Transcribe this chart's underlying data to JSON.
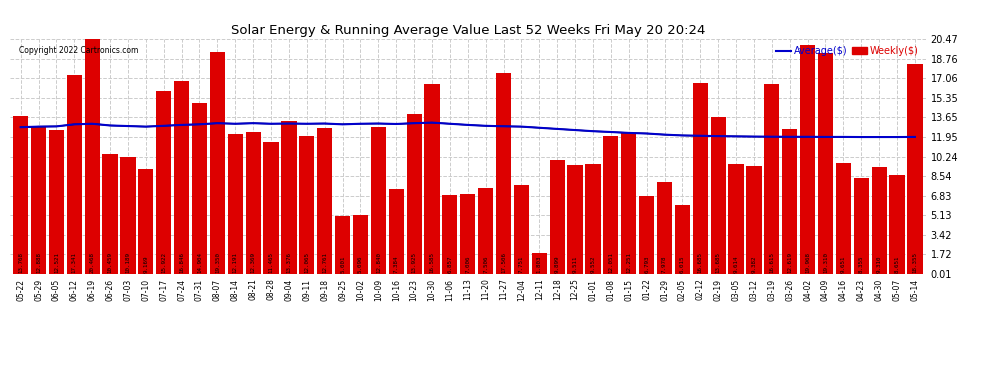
{
  "title": "Solar Energy & Running Average Value Last 52 Weeks Fri May 20 20:24",
  "copyright": "Copyright 2022 Cartronics.com",
  "legend_avg": "Average($)",
  "legend_weekly": "Weekly($)",
  "bar_color": "#dd0000",
  "avg_line_color": "#0000cc",
  "black_line_color": "#000000",
  "yticks": [
    0.01,
    1.72,
    3.42,
    5.13,
    6.83,
    8.54,
    10.24,
    11.95,
    13.65,
    15.35,
    17.06,
    18.76,
    20.47
  ],
  "xlabels": [
    "05-22",
    "05-29",
    "06-05",
    "06-12",
    "06-19",
    "06-26",
    "07-03",
    "07-10",
    "07-17",
    "07-24",
    "07-31",
    "08-07",
    "08-14",
    "08-21",
    "08-28",
    "09-04",
    "09-11",
    "09-18",
    "09-25",
    "10-02",
    "10-09",
    "10-16",
    "10-23",
    "10-30",
    "11-06",
    "11-13",
    "11-20",
    "11-27",
    "12-04",
    "12-11",
    "12-18",
    "12-25",
    "01-01",
    "01-08",
    "01-15",
    "01-22",
    "01-29",
    "02-05",
    "02-12",
    "02-19",
    "03-05",
    "03-12",
    "03-19",
    "03-26",
    "04-02",
    "04-09",
    "04-16",
    "04-23",
    "04-30",
    "05-07",
    "05-14"
  ],
  "bar_values": [
    13.768,
    12.888,
    12.521,
    17.341,
    20.468,
    10.459,
    10.189,
    9.169,
    15.922,
    16.846,
    14.904,
    19.35,
    12.191,
    12.369,
    11.465,
    13.376,
    12.065,
    12.761,
    5.001,
    5.096,
    12.84,
    7.384,
    13.925,
    16.585,
    6.857,
    7.006,
    7.506,
    17.506,
    7.751,
    1.803,
    9.899,
    9.511,
    9.552,
    12.051,
    12.251,
    6.793,
    7.978,
    6.015,
    16.685,
    13.685,
    9.614,
    9.382,
    16.615,
    12.619,
    19.968,
    19.31,
    9.651,
    8.355,
    9.31,
    8.651,
    18.355
  ],
  "bar_labels": [
    "13.768",
    "12.888",
    "12.521",
    "17.341",
    "20.468",
    "10.459",
    "10.189",
    "9.169",
    "15.922",
    "16.846",
    "14.904",
    "19.350",
    "12.191",
    "12.369",
    "11.465",
    "13.376",
    "12.065",
    "12.761",
    "5.001",
    "5.096",
    "12.840",
    "7.384",
    "13.925",
    "16.585",
    "6.857",
    "7.006",
    "7.506",
    "17.506",
    "7.751",
    "1.803",
    "9.899",
    "9.511",
    "9.552",
    "12.051",
    "12.251",
    "6.793",
    "7.978",
    "6.015",
    "16.685",
    "13.685",
    "9.614",
    "9.382",
    "16.615",
    "12.619",
    "19.968",
    "19.310",
    "9.651",
    "8.355",
    "9.310",
    "8.651",
    "18.355"
  ],
  "avg_values": [
    12.8,
    12.85,
    12.87,
    13.05,
    13.1,
    12.95,
    12.9,
    12.85,
    12.92,
    13.0,
    13.05,
    13.15,
    13.1,
    13.15,
    13.1,
    13.12,
    13.1,
    13.12,
    13.05,
    13.1,
    13.12,
    13.08,
    13.15,
    13.2,
    13.1,
    13.0,
    12.92,
    12.88,
    12.85,
    12.75,
    12.65,
    12.55,
    12.45,
    12.38,
    12.3,
    12.25,
    12.15,
    12.08,
    12.05,
    12.02,
    12.0,
    11.98,
    11.97,
    11.96,
    11.96,
    11.95,
    11.95,
    11.94,
    11.94,
    11.94,
    11.95
  ],
  "ylim_min": 0.0,
  "ylim_max": 20.47,
  "background_color": "#ffffff",
  "grid_color": "#cccccc"
}
